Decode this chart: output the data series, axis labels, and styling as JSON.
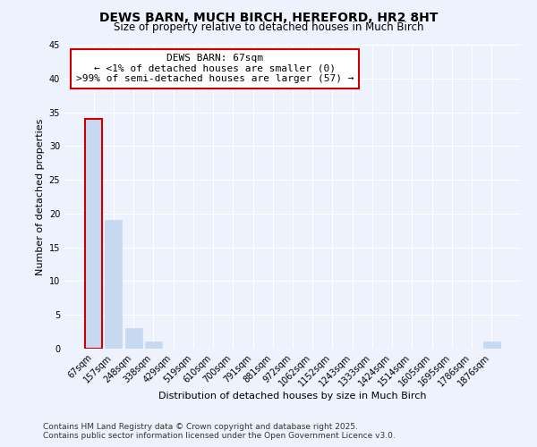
{
  "title": "DEWS BARN, MUCH BIRCH, HEREFORD, HR2 8HT",
  "subtitle": "Size of property relative to detached houses in Much Birch",
  "xlabel": "Distribution of detached houses by size in Much Birch",
  "ylabel": "Number of detached properties",
  "bar_values": [
    34,
    19,
    3,
    1,
    0,
    0,
    0,
    0,
    0,
    0,
    0,
    0,
    0,
    0,
    0,
    0,
    0,
    0,
    0,
    0,
    1
  ],
  "bar_labels": [
    "67sqm",
    "157sqm",
    "248sqm",
    "338sqm",
    "429sqm",
    "519sqm",
    "610sqm",
    "700sqm",
    "791sqm",
    "881sqm",
    "972sqm",
    "1062sqm",
    "1152sqm",
    "1243sqm",
    "1333sqm",
    "1424sqm",
    "1514sqm",
    "1605sqm",
    "1695sqm",
    "1786sqm",
    "1876sqm"
  ],
  "bar_color": "#c6d9f0",
  "bar_edge_color": "#c6d9f0",
  "highlight_bar_index": 0,
  "highlight_edge_color": "#cc0000",
  "ylim": [
    0,
    45
  ],
  "yticks": [
    0,
    5,
    10,
    15,
    20,
    25,
    30,
    35,
    40,
    45
  ],
  "annotation_title": "DEWS BARN: 67sqm",
  "annotation_line1": "← <1% of detached houses are smaller (0)",
  "annotation_line2": ">99% of semi-detached houses are larger (57) →",
  "annotation_box_color": "#ffffff",
  "annotation_border_color": "#cc0000",
  "background_color": "#eef2fc",
  "grid_color": "#ffffff",
  "footer_line1": "Contains HM Land Registry data © Crown copyright and database right 2025.",
  "footer_line2": "Contains public sector information licensed under the Open Government Licence v3.0.",
  "title_fontsize": 10,
  "subtitle_fontsize": 8.5,
  "axis_label_fontsize": 8,
  "tick_fontsize": 7,
  "annotation_fontsize": 8,
  "footer_fontsize": 6.5
}
